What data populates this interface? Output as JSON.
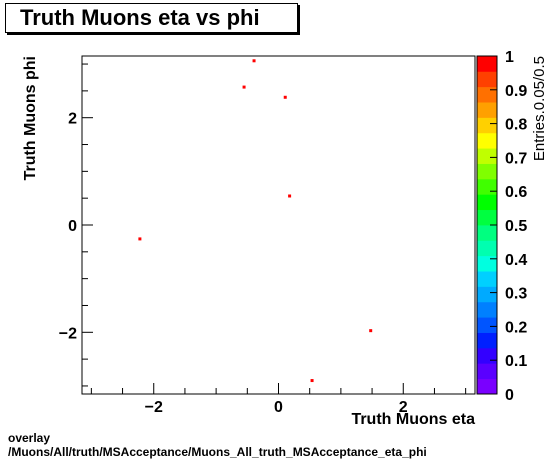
{
  "page": {
    "title": "Truth Muons eta vs phi"
  },
  "footer": {
    "line1": "overlay",
    "line2": "/Muons/All/truth/MSAcceptance/Muons_All_truth_MSAcceptance_eta_phi"
  },
  "chart_data": {
    "type": "scatter",
    "title": "Truth Muons eta vs phi",
    "xlabel": "Truth Muons eta",
    "ylabel": "Truth Muons phi",
    "zlabel": "Entries.0.05/0.5",
    "xlim": [
      -3.15,
      3.15
    ],
    "ylim": [
      -3.15,
      3.15
    ],
    "zlim": [
      0,
      1
    ],
    "x_ticks": [
      -2,
      0,
      2
    ],
    "x_tick_labels": [
      "−2",
      "0",
      "2"
    ],
    "y_ticks": [
      -2,
      0,
      2
    ],
    "y_tick_labels": [
      "−2",
      "0",
      "2"
    ],
    "z_ticks": [
      0,
      0.1,
      0.2,
      0.3,
      0.4,
      0.5,
      0.6,
      0.7,
      0.8,
      0.9,
      1
    ],
    "z_tick_labels": [
      "0",
      "0.1",
      "0.2",
      "0.3",
      "0.4",
      "0.5",
      "0.6",
      "0.7",
      "0.8",
      "0.9",
      "1"
    ],
    "grid": false,
    "colorbar": "right",
    "marker_color": "#ff0000",
    "palette": [
      "#7a00ff",
      "#5a00ff",
      "#3300ff",
      "#0020ff",
      "#0055ff",
      "#0080ff",
      "#00aaff",
      "#00d0ff",
      "#00ffe0",
      "#00ffb0",
      "#00ff80",
      "#00ff40",
      "#00ff00",
      "#40ff00",
      "#80ff00",
      "#c0ff00",
      "#ffff00",
      "#ffd000",
      "#ffa000",
      "#ff7000",
      "#ff4000",
      "#ff0000"
    ],
    "x": [
      -0.4,
      -0.56,
      0.1,
      0.17,
      -2.23,
      1.47,
      0.53
    ],
    "y": [
      3.07,
      2.58,
      2.39,
      0.55,
      -0.25,
      -1.96,
      -2.89
    ],
    "values": [
      1,
      1,
      1,
      1,
      1,
      1,
      1
    ]
  }
}
